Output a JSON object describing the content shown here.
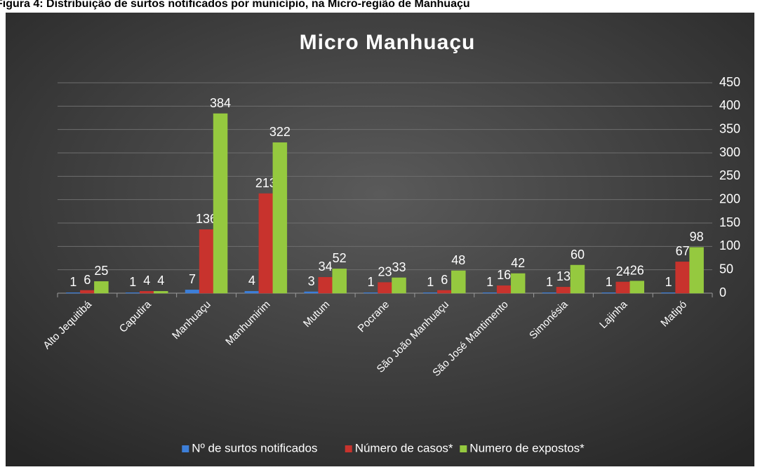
{
  "caption": "Figura 4: Distribuição de surtos notificados por município, na Micro-região de Manhuaçu",
  "chart_data": {
    "type": "bar",
    "title": "Micro Manhuaçu",
    "categories": [
      "Alto Jequitibá",
      "Caputira",
      "Manhuaçu",
      "Manhumirim",
      "Mutum",
      "Pocrane",
      "São João Manhuaçu",
      "São José Mantimento",
      "Simonésia",
      "Lajinha",
      "Matipó"
    ],
    "series": [
      {
        "name": "Nº de surtos notificados",
        "color": "#3d7fd9",
        "values": [
          1,
          1,
          7,
          4,
          3,
          1,
          1,
          1,
          1,
          1,
          1
        ]
      },
      {
        "name": "Número de casos*",
        "color": "#c8332d",
        "values": [
          6,
          4,
          136,
          213,
          34,
          23,
          6,
          16,
          13,
          24,
          67
        ]
      },
      {
        "name": "Numero de expostos*",
        "color": "#95c93f",
        "values": [
          25,
          4,
          384,
          322,
          52,
          33,
          48,
          42,
          60,
          26,
          98
        ]
      }
    ],
    "ylim": [
      0,
      450
    ],
    "yticks": [
      0,
      50,
      100,
      150,
      200,
      250,
      300,
      350,
      400,
      450
    ],
    "grid": true,
    "legend": "bottom"
  }
}
